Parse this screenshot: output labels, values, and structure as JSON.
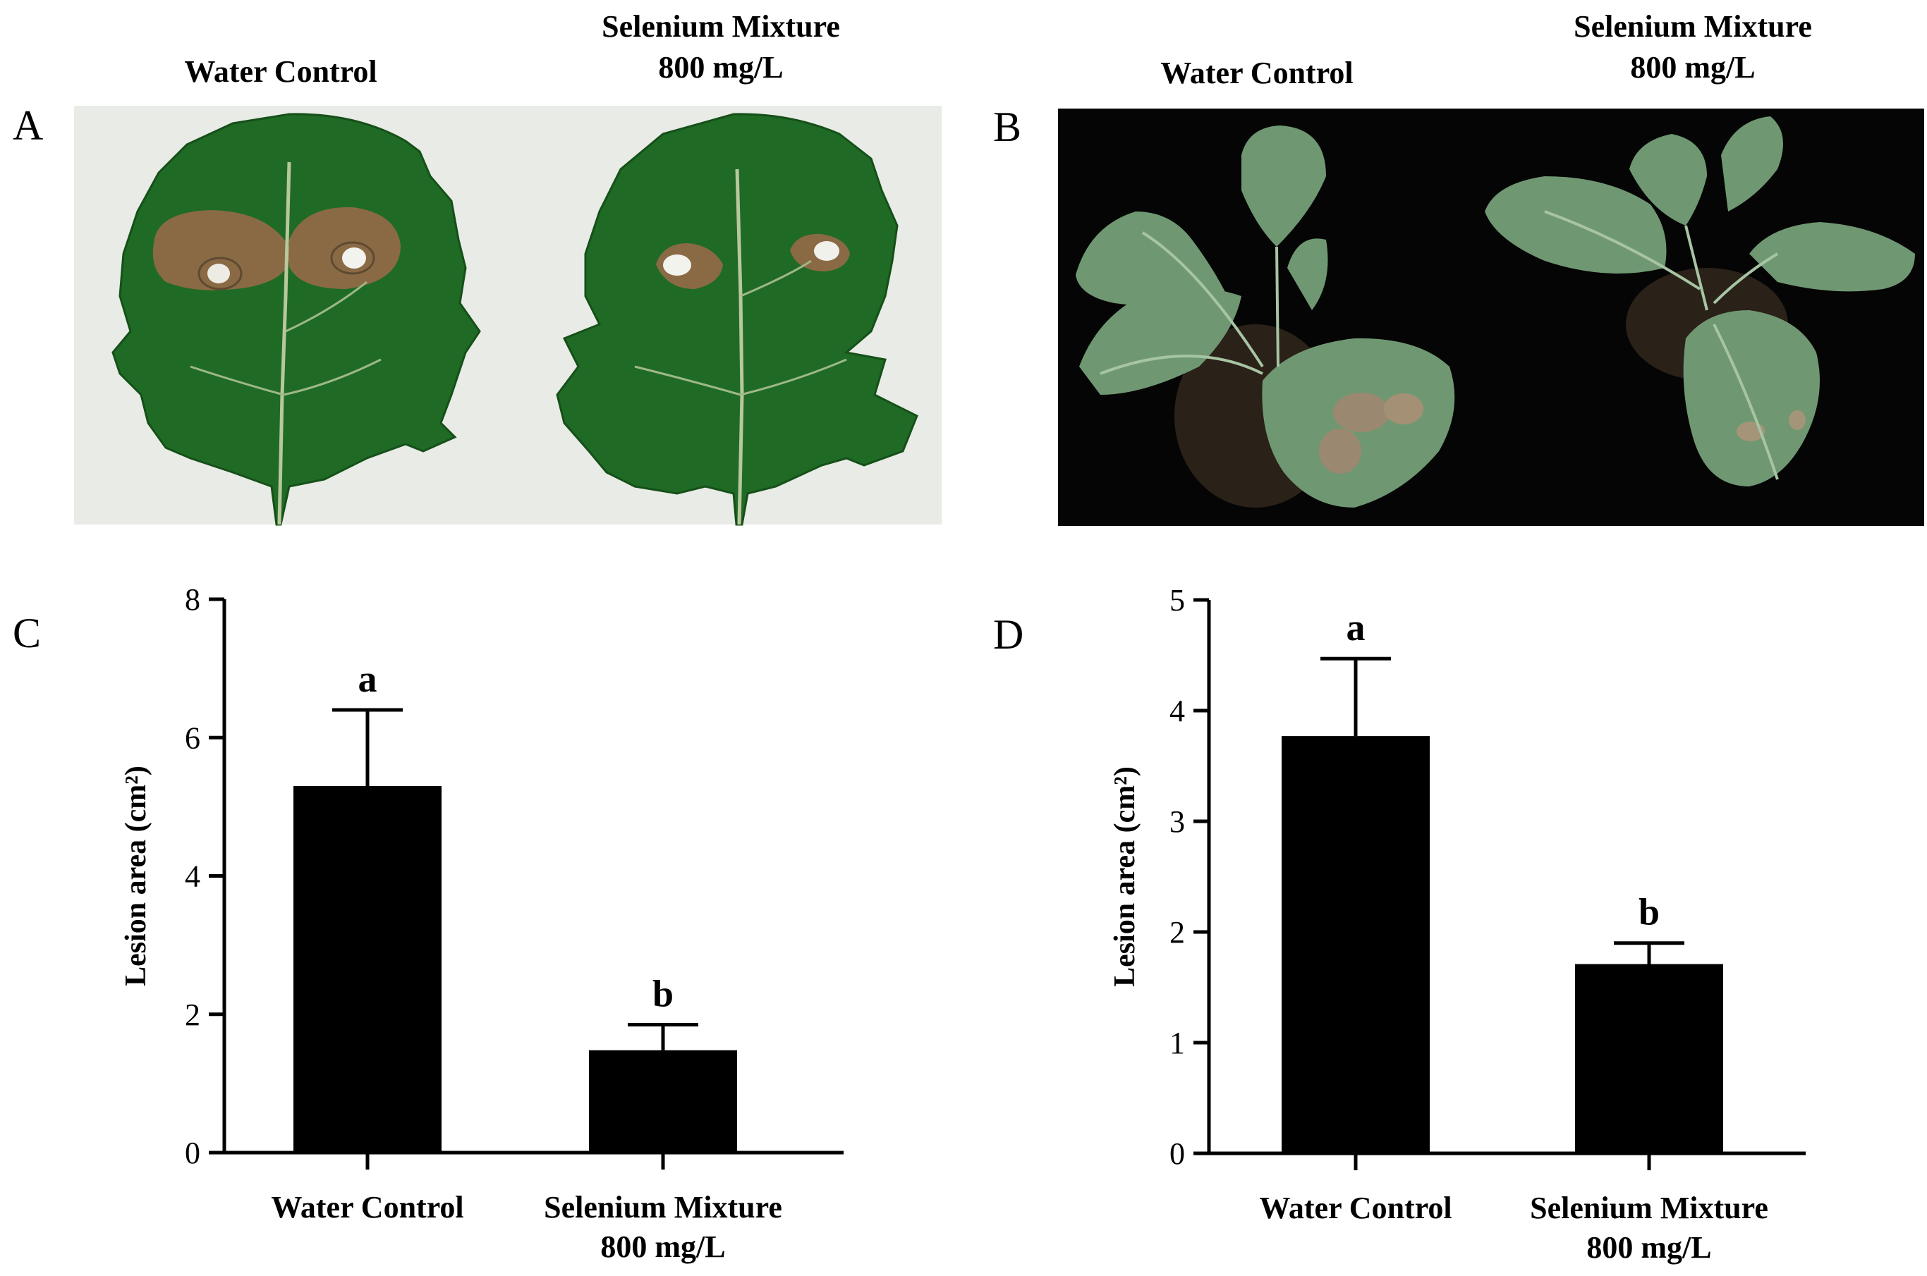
{
  "panels": {
    "a": {
      "letter": "A",
      "left_caption": [
        "Water Control"
      ],
      "right_caption": [
        "Selenium Mixture",
        "800 mg/L"
      ]
    },
    "b": {
      "letter": "B",
      "left_caption": [
        "Water Control"
      ],
      "right_caption": [
        "Selenium Mixture",
        "800 mg/L"
      ]
    },
    "c": {
      "letter": "C"
    },
    "d": {
      "letter": "D"
    }
  },
  "colors": {
    "bar": "#000000",
    "leaf": "#1f6b25",
    "leaf_dark": "#155019",
    "lesion": "#8a6a45",
    "lesion_edge": "#5e4a30",
    "photo_bg_a": "#e9ebe6",
    "photo_bg_b": "#050505",
    "plant_leaf": "#6f9872",
    "soil": "#2a2118"
  },
  "chart_data": [
    {
      "panel": "C",
      "type": "bar",
      "categories": [
        [
          "Water Control"
        ],
        [
          "Selenium Mixture",
          "800 mg/L"
        ]
      ],
      "values": [
        5.3,
        1.48
      ],
      "errors": [
        1.1,
        0.37
      ],
      "significance": [
        "a",
        "b"
      ],
      "ylabel": "Lesion area (cm²)",
      "ylim": [
        0,
        8
      ],
      "yticks": [
        0,
        2,
        4,
        6,
        8
      ]
    },
    {
      "panel": "D",
      "type": "bar",
      "categories": [
        [
          "Water Control"
        ],
        [
          "Selenium Mixture",
          "800 mg/L"
        ]
      ],
      "values": [
        3.77,
        1.71
      ],
      "errors": [
        0.7,
        0.19
      ],
      "significance": [
        "a",
        "b"
      ],
      "ylabel": "Lesion area (cm²)",
      "ylim": [
        0,
        5
      ],
      "yticks": [
        0,
        1,
        2,
        3,
        4,
        5
      ]
    }
  ]
}
